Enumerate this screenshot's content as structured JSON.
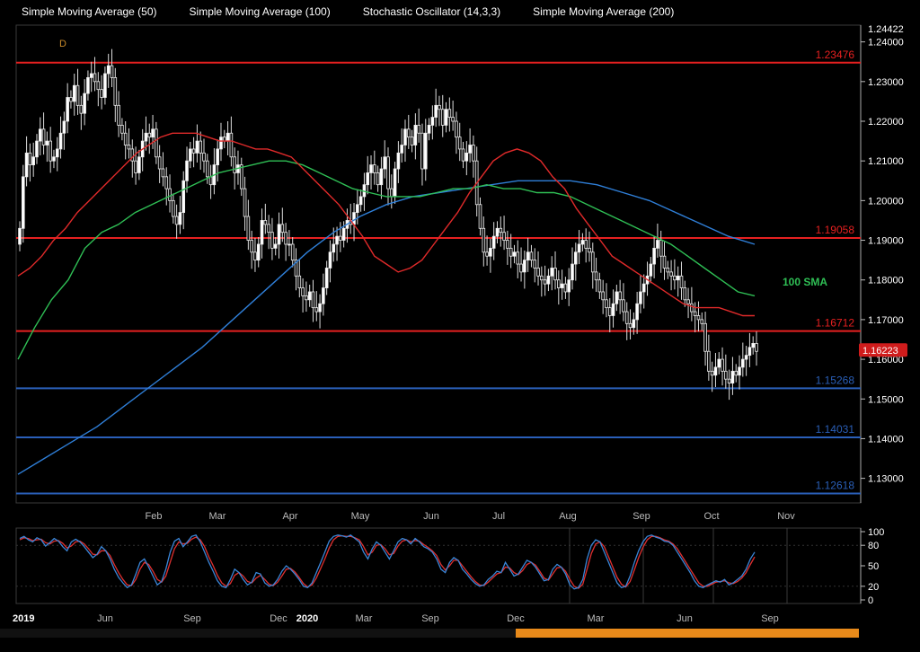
{
  "indicators": [
    "Simple Moving Average (50)",
    "Simple Moving Average (100)",
    "Stochastic Oscillator (14,3,3)",
    "Simple Moving Average (200)"
  ],
  "chart_data": {
    "type": "candlestick",
    "timeframe_marker": "D",
    "price_axis": {
      "min": 1.1238,
      "max": 1.24422,
      "ticks": [
        "1.24000",
        "1.23000",
        "1.22000",
        "1.21000",
        "1.20000",
        "1.19000",
        "1.18000",
        "1.17000",
        "1.16000",
        "1.15000",
        "1.14000",
        "1.13000"
      ],
      "top_label": "1.24422",
      "last_price": "1.16223",
      "last_price_value": 1.16223
    },
    "months": [
      "Feb",
      "Mar",
      "Apr",
      "May",
      "Jun",
      "Jul",
      "Aug",
      "Sep",
      "Oct",
      "Nov"
    ],
    "levels": [
      {
        "label": "1.23476",
        "value": 1.23476,
        "color": "#e62020"
      },
      {
        "label": "1.19058",
        "value": 1.19058,
        "color": "#e62020"
      },
      {
        "label": "1.16712",
        "value": 1.16712,
        "color": "#e62020"
      },
      {
        "label": "1.15268",
        "value": 1.15268,
        "color": "#2a5fb8"
      },
      {
        "label": "1.14031",
        "value": 1.14031,
        "color": "#2a5fb8"
      },
      {
        "label": "1.12618",
        "value": 1.12618,
        "color": "#2a5fb8"
      }
    ],
    "sma_label": "100 SMA",
    "close_series": [
      1.193,
      1.206,
      1.212,
      1.209,
      1.211,
      1.215,
      1.218,
      1.214,
      1.215,
      1.21,
      1.211,
      1.213,
      1.217,
      1.22,
      1.226,
      1.225,
      1.229,
      1.224,
      1.222,
      1.227,
      1.231,
      1.232,
      1.23,
      1.228,
      1.226,
      1.232,
      1.234,
      1.231,
      1.224,
      1.219,
      1.217,
      1.214,
      1.213,
      1.21,
      1.207,
      1.211,
      1.215,
      1.217,
      1.216,
      1.218,
      1.211,
      1.208,
      1.206,
      1.203,
      1.2,
      1.196,
      1.194,
      1.197,
      1.205,
      1.21,
      1.213,
      1.212,
      1.215,
      1.212,
      1.21,
      1.206,
      1.204,
      1.209,
      1.213,
      1.216,
      1.215,
      1.217,
      1.211,
      1.207,
      1.209,
      1.203,
      1.196,
      1.19,
      1.187,
      1.185,
      1.189,
      1.195,
      1.194,
      1.192,
      1.188,
      1.189,
      1.194,
      1.192,
      1.189,
      1.189,
      1.185,
      1.181,
      1.178,
      1.176,
      1.175,
      1.177,
      1.173,
      1.172,
      1.174,
      1.178,
      1.183,
      1.187,
      1.189,
      1.191,
      1.19,
      1.193,
      1.195,
      1.194,
      1.197,
      1.199,
      1.201,
      1.204,
      1.207,
      1.209,
      1.207,
      1.204,
      1.208,
      1.211,
      1.203,
      1.201,
      1.208,
      1.212,
      1.214,
      1.218,
      1.216,
      1.214,
      1.219,
      1.217,
      1.208,
      1.217,
      1.219,
      1.221,
      1.224,
      1.223,
      1.219,
      1.223,
      1.221,
      1.22,
      1.216,
      1.213,
      1.21,
      1.212,
      1.214,
      1.21,
      1.199,
      1.193,
      1.187,
      1.186,
      1.188,
      1.191,
      1.193,
      1.192,
      1.19,
      1.188,
      1.186,
      1.187,
      1.184,
      1.182,
      1.185,
      1.187,
      1.185,
      1.183,
      1.181,
      1.18,
      1.179,
      1.181,
      1.183,
      1.18,
      1.178,
      1.179,
      1.177,
      1.18,
      1.184,
      1.187,
      1.189,
      1.19,
      1.188,
      1.187,
      1.182,
      1.18,
      1.177,
      1.175,
      1.173,
      1.171,
      1.174,
      1.177,
      1.175,
      1.172,
      1.169,
      1.168,
      1.17,
      1.174,
      1.177,
      1.179,
      1.181,
      1.184,
      1.188,
      1.19,
      1.186,
      1.183,
      1.182,
      1.181,
      1.18,
      1.181,
      1.178,
      1.175,
      1.174,
      1.172,
      1.171,
      1.17,
      1.169,
      1.162,
      1.157,
      1.156,
      1.158,
      1.16,
      1.157,
      1.155,
      1.154,
      1.157,
      1.156,
      1.158,
      1.16,
      1.161,
      1.163,
      1.164,
      1.162
    ],
    "sma50": [
      1.181,
      1.183,
      1.186,
      1.19,
      1.193,
      1.197,
      1.2,
      1.203,
      1.206,
      1.209,
      1.212,
      1.214,
      1.216,
      1.217,
      1.217,
      1.217,
      1.216,
      1.215,
      1.215,
      1.214,
      1.213,
      1.213,
      1.212,
      1.211,
      1.208,
      1.205,
      1.202,
      1.199,
      1.195,
      1.191,
      1.186,
      1.184,
      1.182,
      1.183,
      1.185,
      1.189,
      1.193,
      1.197,
      1.202,
      1.206,
      1.21,
      1.212,
      1.213,
      1.212,
      1.21,
      1.206,
      1.203,
      1.198,
      1.194,
      1.19,
      1.186,
      1.184,
      1.182,
      1.18,
      1.178,
      1.176,
      1.174,
      1.173,
      1.173,
      1.173,
      1.172,
      1.171,
      1.171
    ],
    "sma100": [
      1.16,
      1.168,
      1.175,
      1.18,
      1.188,
      1.192,
      1.194,
      1.197,
      1.199,
      1.201,
      1.203,
      1.205,
      1.207,
      1.208,
      1.209,
      1.21,
      1.21,
      1.209,
      1.207,
      1.205,
      1.203,
      1.202,
      1.201,
      1.201,
      1.201,
      1.202,
      1.203,
      1.203,
      1.204,
      1.203,
      1.203,
      1.202,
      1.202,
      1.201,
      1.199,
      1.197,
      1.195,
      1.193,
      1.191,
      1.189,
      1.186,
      1.183,
      1.18,
      1.177,
      1.176
    ],
    "sma200": [
      1.131,
      1.135,
      1.139,
      1.143,
      1.148,
      1.153,
      1.158,
      1.163,
      1.169,
      1.175,
      1.181,
      1.187,
      1.192,
      1.196,
      1.199,
      1.201,
      1.202,
      1.203,
      1.204,
      1.205,
      1.205,
      1.205,
      1.204,
      1.202,
      1.2,
      1.197,
      1.194,
      1.191,
      1.189
    ],
    "oscillator": {
      "ticks": [
        "100",
        "80",
        "50",
        "20",
        "0"
      ],
      "k": [
        90,
        93,
        88,
        85,
        91,
        88,
        79,
        84,
        90,
        86,
        78,
        72,
        85,
        89,
        85,
        78,
        70,
        62,
        67,
        78,
        72,
        60,
        45,
        33,
        25,
        18,
        22,
        38,
        55,
        60,
        48,
        35,
        22,
        27,
        45,
        70,
        86,
        90,
        78,
        85,
        93,
        95,
        85,
        70,
        55,
        42,
        28,
        20,
        18,
        30,
        45,
        40,
        30,
        22,
        26,
        40,
        38,
        25,
        20,
        22,
        30,
        42,
        50,
        45,
        38,
        30,
        20,
        18,
        25,
        40,
        55,
        70,
        86,
        93,
        95,
        94,
        92,
        95,
        90,
        85,
        70,
        60,
        75,
        85,
        80,
        70,
        60,
        72,
        85,
        90,
        88,
        82,
        90,
        85,
        78,
        75,
        70,
        60,
        45,
        40,
        55,
        62,
        58,
        45,
        38,
        30,
        24,
        20,
        22,
        30,
        35,
        42,
        40,
        55,
        45,
        35,
        38,
        48,
        58,
        55,
        48,
        38,
        28,
        30,
        45,
        52,
        48,
        38,
        22,
        16,
        18,
        30,
        60,
        80,
        88,
        85,
        70,
        55,
        40,
        25,
        18,
        20,
        35,
        55,
        72,
        85,
        93,
        95,
        92,
        90,
        86,
        85,
        80,
        70,
        60,
        50,
        40,
        28,
        20,
        18,
        22,
        25,
        28,
        26,
        30,
        22,
        25,
        30,
        35,
        45,
        60,
        70
      ],
      "d": [
        88,
        91,
        90,
        87,
        88,
        89,
        84,
        82,
        86,
        87,
        83,
        76,
        79,
        85,
        86,
        82,
        75,
        67,
        66,
        72,
        72,
        65,
        52,
        40,
        30,
        22,
        21,
        30,
        45,
        55,
        52,
        42,
        30,
        26,
        35,
        55,
        75,
        85,
        82,
        83,
        89,
        92,
        88,
        78,
        63,
        50,
        36,
        25,
        20,
        24,
        36,
        40,
        35,
        27,
        25,
        32,
        36,
        30,
        23,
        21,
        26,
        35,
        45,
        46,
        41,
        33,
        24,
        19,
        22,
        32,
        46,
        60,
        76,
        88,
        93,
        94,
        93,
        93,
        91,
        88,
        78,
        66,
        70,
        80,
        81,
        75,
        66,
        68,
        79,
        86,
        88,
        85,
        87,
        86,
        81,
        77,
        72,
        65,
        52,
        44,
        50,
        58,
        58,
        50,
        42,
        34,
        27,
        22,
        21,
        26,
        32,
        38,
        40,
        48,
        47,
        40,
        37,
        43,
        52,
        55,
        51,
        42,
        32,
        29,
        38,
        47,
        48,
        42,
        30,
        20,
        17,
        23,
        45,
        68,
        82,
        85,
        78,
        63,
        48,
        33,
        23,
        19,
        27,
        44,
        62,
        77,
        88,
        93,
        93,
        91,
        88,
        86,
        82,
        75,
        65,
        55,
        45,
        35,
        25,
        20,
        20,
        23,
        26,
        27,
        28,
        25,
        24,
        27,
        32,
        40,
        52,
        63
      ]
    },
    "timeline": {
      "labels": [
        "2019",
        "Jun",
        "Sep",
        "Dec",
        "2020",
        "Mar",
        "Sep",
        "Dec",
        "Mar",
        "Jun",
        "Sep"
      ]
    }
  }
}
